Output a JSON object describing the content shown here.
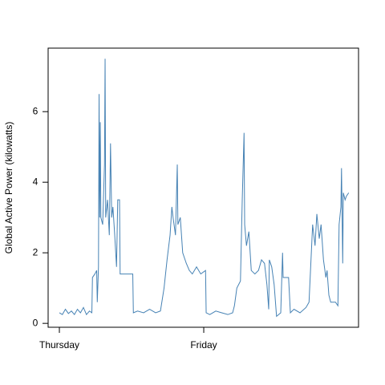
{
  "chart_data": {
    "type": "line",
    "ylabel": "Global Active Power (kilowatts)",
    "color": "#4682b4",
    "x": [
      0,
      0.5,
      1,
      1.5,
      2,
      2.5,
      3,
      3.5,
      4,
      4.5,
      5,
      5.4,
      5.5,
      5.9,
      6.2,
      6.3,
      6.5,
      6.6,
      6.7,
      6.8,
      6.9,
      7.2,
      7.5,
      7.6,
      7.7,
      8.0,
      8.3,
      8.5,
      8.7,
      8.9,
      9.2,
      9.5,
      9.7,
      10.0,
      10.1,
      11,
      12.2,
      12.3,
      13,
      14,
      15,
      16,
      16.8,
      17.4,
      17.9,
      18.4,
      18.7,
      18.9,
      19.3,
      19.6,
      19.7,
      20.1,
      20.5,
      21.1,
      21.6,
      22.1,
      22.8,
      23.5,
      24.3,
      24.4,
      25,
      26,
      27,
      28,
      28.8,
      29.1,
      29.5,
      30.1,
      30.4,
      30.7,
      30.8,
      31.1,
      31.5,
      31.9,
      32.5,
      33.1,
      33.6,
      34.1,
      34.5,
      34.8,
      34.9,
      35.3,
      35.7,
      36.1,
      36.8,
      37.1,
      37.2,
      38.1,
      38.4,
      39,
      40,
      41,
      41.5,
      42.1,
      42.5,
      42.8,
      43.2,
      43.5,
      43.9,
      44.3,
      44.5,
      44.8,
      45.1,
      45.9,
      46.3,
      46.5,
      46.8,
      46.9,
      47.1,
      47.2,
      47.5,
      47.7,
      48.1
    ],
    "values": [
      0.3,
      0.25,
      0.4,
      0.28,
      0.35,
      0.25,
      0.4,
      0.3,
      0.45,
      0.25,
      0.35,
      0.3,
      1.3,
      1.4,
      1.5,
      0.6,
      1.6,
      6.5,
      3.0,
      5.7,
      3.0,
      2.8,
      4.5,
      7.5,
      3.0,
      3.5,
      2.5,
      5.1,
      3.0,
      3.3,
      2.5,
      1.6,
      3.5,
      3.5,
      1.4,
      1.4,
      1.4,
      0.3,
      0.35,
      0.3,
      0.4,
      0.3,
      0.35,
      1.0,
      1.8,
      2.5,
      3.3,
      3.0,
      2.5,
      4.5,
      2.8,
      3.0,
      2.0,
      1.7,
      1.5,
      1.4,
      1.6,
      1.4,
      1.5,
      0.3,
      0.25,
      0.35,
      0.3,
      0.25,
      0.3,
      0.5,
      1.0,
      1.2,
      3.5,
      5.4,
      2.8,
      2.2,
      2.6,
      1.5,
      1.4,
      1.5,
      1.8,
      1.7,
      1.1,
      0.4,
      1.8,
      1.6,
      1.1,
      0.2,
      0.3,
      2.0,
      1.3,
      1.3,
      0.3,
      0.4,
      0.3,
      0.45,
      0.6,
      2.8,
      2.2,
      3.1,
      2.4,
      2.8,
      1.8,
      1.3,
      1.5,
      0.8,
      0.6,
      0.6,
      0.5,
      2.8,
      3.3,
      4.4,
      1.7,
      3.7,
      3.5,
      3.6,
      3.7
    ],
    "xlim": [
      -1.87,
      49.73
    ],
    "xticks": [
      {
        "value": 0,
        "label": "Thursday"
      },
      {
        "value": 24,
        "label": "Friday"
      }
    ],
    "ylim": [
      -0.11,
      7.8
    ],
    "yticks": [
      0,
      2,
      4,
      6
    ]
  }
}
